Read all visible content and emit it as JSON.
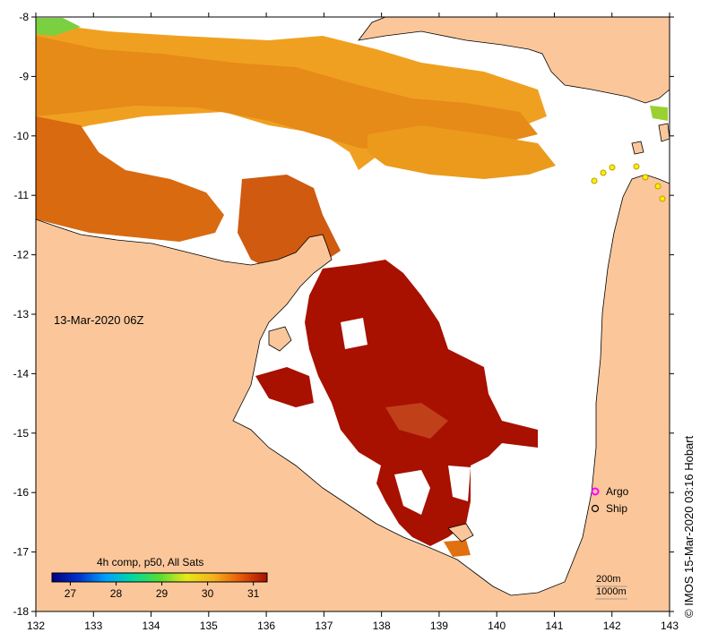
{
  "map": {
    "date_label": "13-Mar-2020 06Z",
    "x_axis": {
      "ticks": [
        "132",
        "133",
        "134",
        "135",
        "136",
        "137",
        "138",
        "139",
        "140",
        "141",
        "142",
        "143"
      ]
    },
    "y_axis": {
      "ticks": [
        "-8",
        "-9",
        "-10",
        "-11",
        "-12",
        "-13",
        "-14",
        "-15",
        "-16",
        "-17",
        "-18"
      ]
    },
    "colors": {
      "land": "#fbc79a",
      "no_data": "#ffffff",
      "coast": "#000000"
    }
  },
  "colorbar": {
    "title": "4h comp, p50, All Sats",
    "ticks": [
      "27",
      "28",
      "29",
      "30",
      "31"
    ],
    "range": [
      26.6,
      31.3
    ],
    "stops": [
      "#00007f",
      "#0033cc",
      "#00a0ff",
      "#00d9a0",
      "#55dd33",
      "#e8e81a",
      "#f5b21c",
      "#e85a0a",
      "#a60f00"
    ]
  },
  "legend": {
    "argo": {
      "label": "Argo",
      "color": "#ff00ff"
    },
    "ship": {
      "label": "Ship",
      "color": "#000000"
    }
  },
  "depth_contours": [
    "200m",
    "1000m"
  ],
  "credit": "© IMOS 15-Mar-2020 03:16 Hobart"
}
